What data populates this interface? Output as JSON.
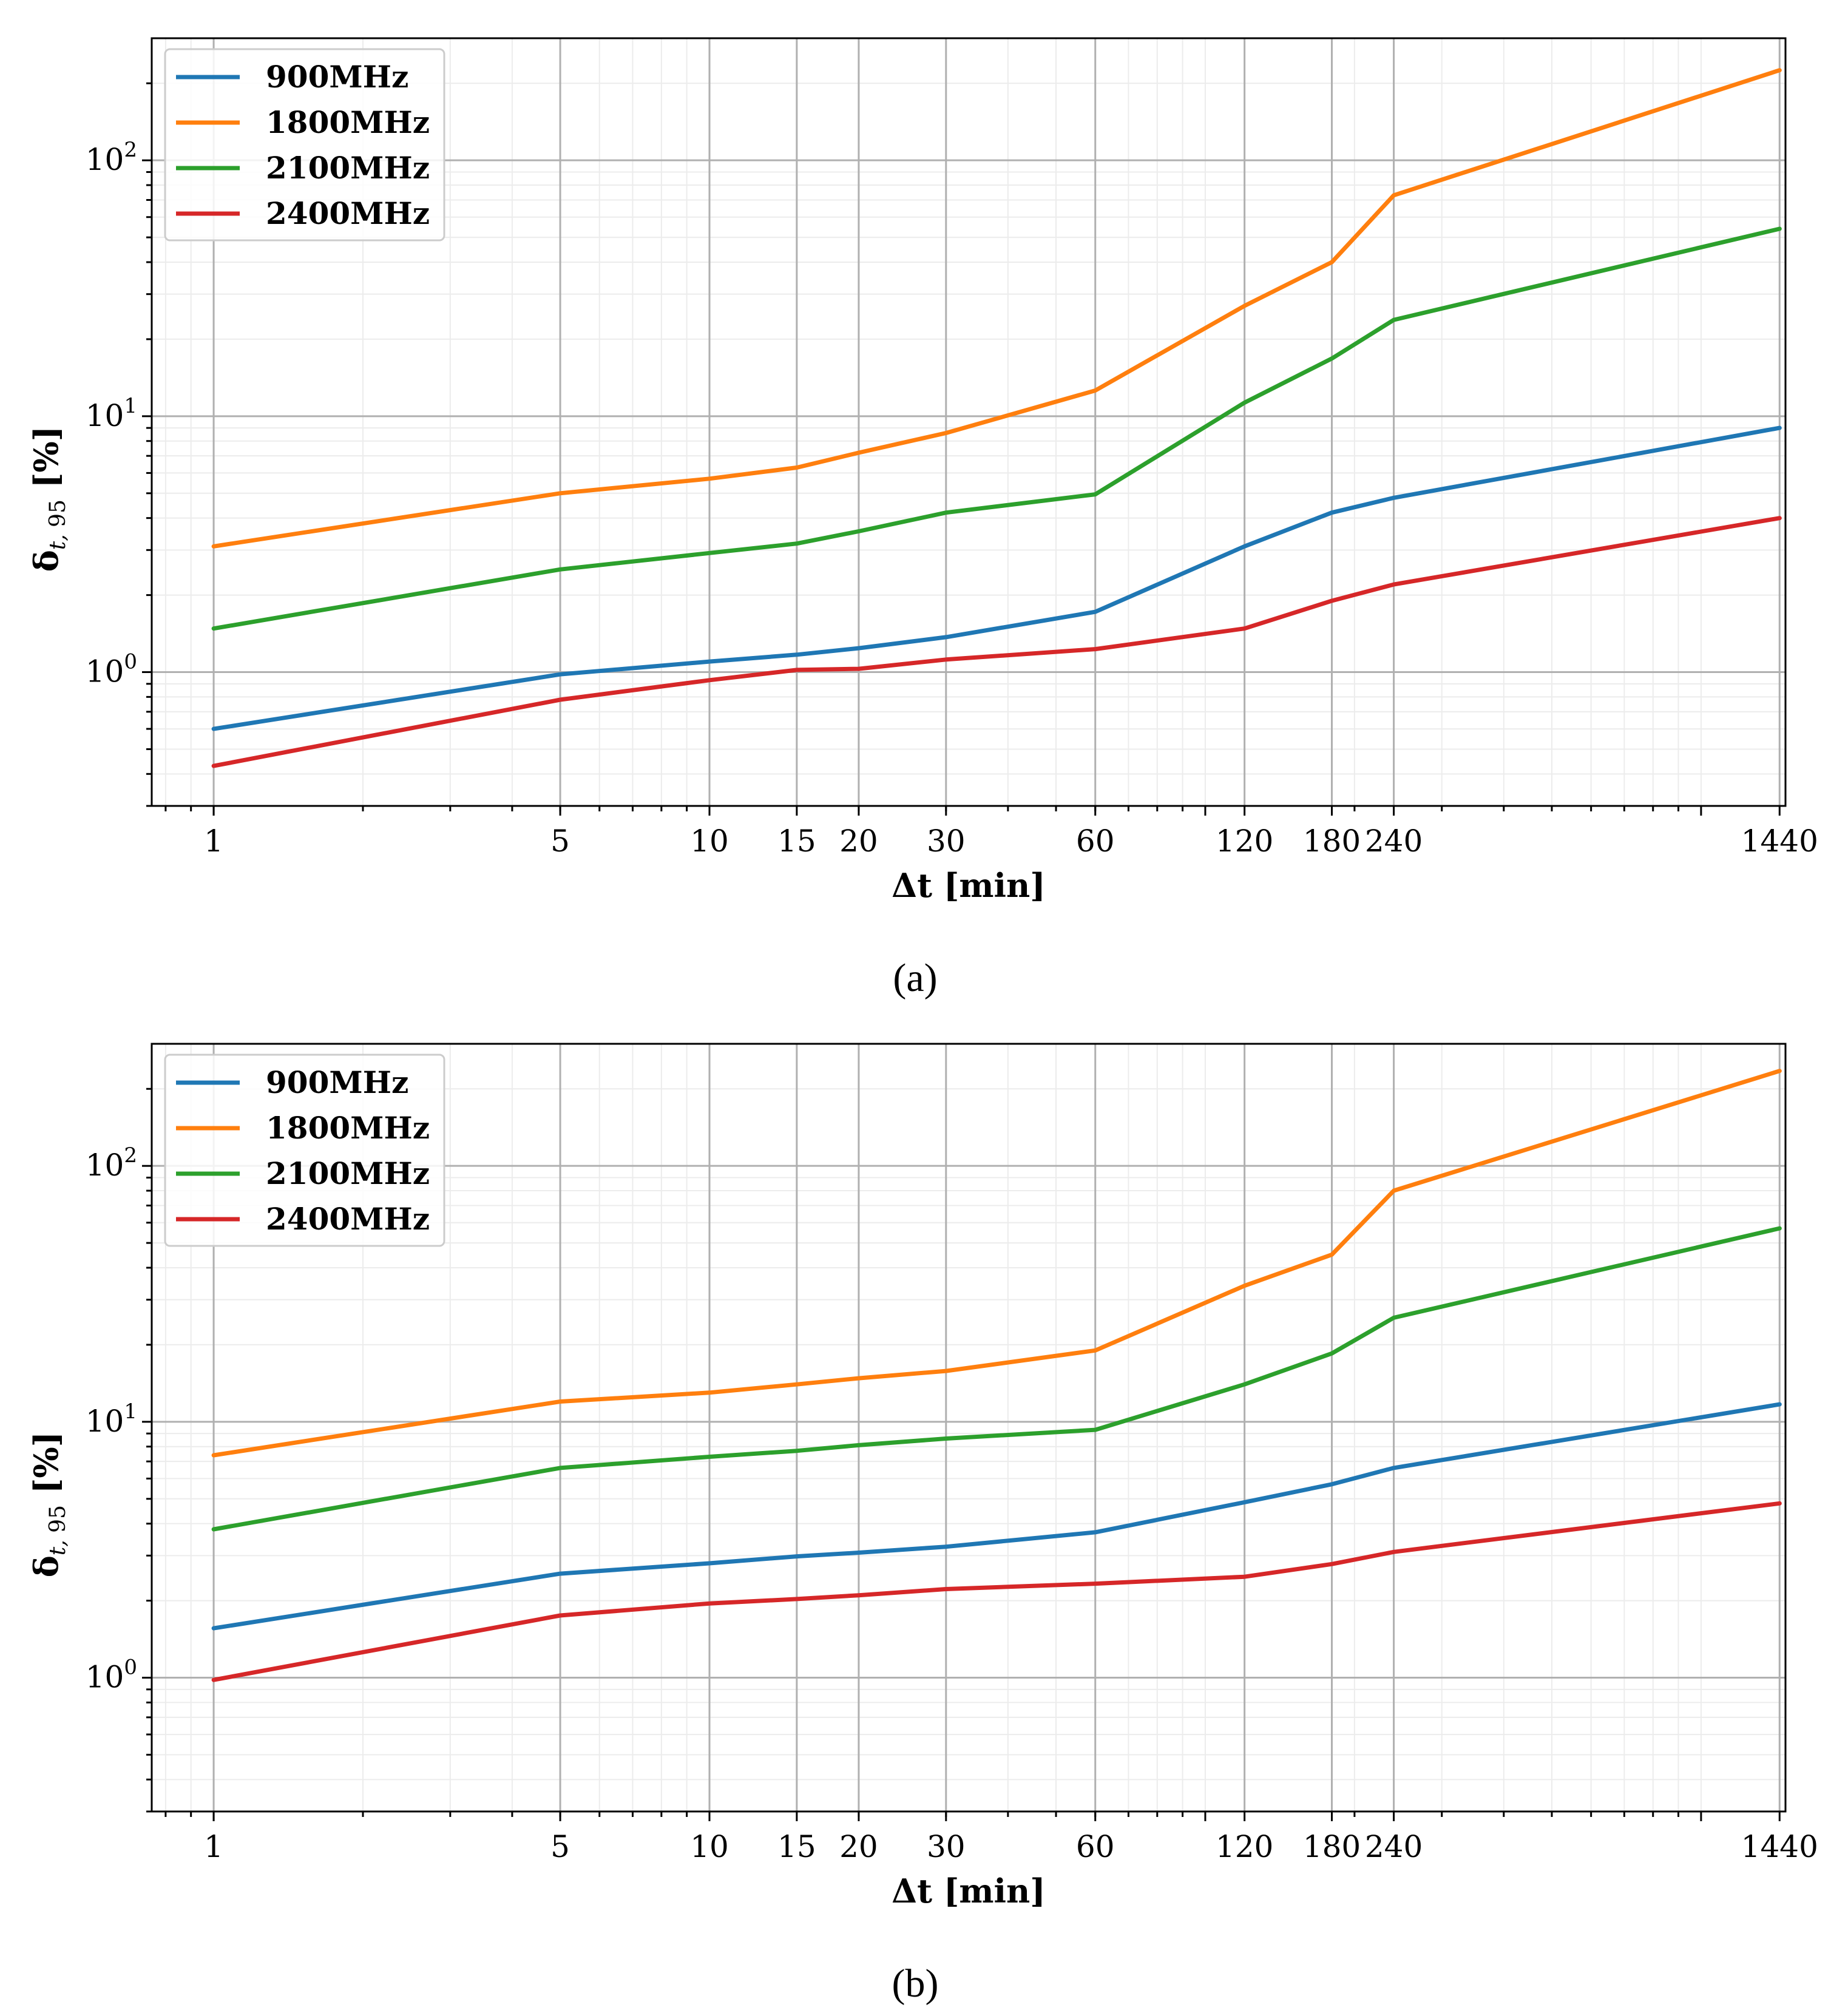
{
  "colors": {
    "900MHz": "#1f77b4",
    "1800MHz": "#ff7f0e",
    "2100MHz": "#2ca02c",
    "2400MHz": "#d62728"
  },
  "chart_data": [
    {
      "panel": "a",
      "caption": "(a)",
      "type": "line",
      "x_scale": "log",
      "y_scale": "log",
      "xlabel": "Δt [min]",
      "ylabel": "δt, 95 [%]",
      "x": [
        1,
        5,
        10,
        15,
        20,
        30,
        60,
        120,
        180,
        240,
        1440
      ],
      "x_tick_labels": [
        "1",
        "5",
        "10",
        "15",
        "20",
        "30",
        "60",
        "120",
        "180",
        "240",
        "1440"
      ],
      "xlim": [
        0.75,
        1480
      ],
      "ylim": [
        0.3,
        300
      ],
      "y_ticks": [
        1,
        10,
        100
      ],
      "grid": true,
      "legend_position": "top-left",
      "series": [
        {
          "name": "900MHz",
          "values": [
            0.6,
            0.98,
            1.1,
            1.17,
            1.24,
            1.37,
            1.72,
            3.1,
            4.2,
            4.8,
            9.0
          ]
        },
        {
          "name": "1800MHz",
          "values": [
            3.1,
            5.0,
            5.7,
            6.3,
            7.2,
            8.6,
            12.6,
            27.0,
            40.0,
            73.0,
            225.0
          ]
        },
        {
          "name": "2100MHz",
          "values": [
            1.48,
            2.52,
            2.92,
            3.18,
            3.55,
            4.2,
            4.95,
            11.3,
            16.8,
            23.8,
            54.0
          ]
        },
        {
          "name": "2400MHz",
          "values": [
            0.43,
            0.78,
            0.93,
            1.02,
            1.03,
            1.12,
            1.23,
            1.48,
            1.9,
            2.2,
            4.0
          ]
        }
      ]
    },
    {
      "panel": "b",
      "caption": "(b)",
      "type": "line",
      "x_scale": "log",
      "y_scale": "log",
      "xlabel": "Δt [min]",
      "ylabel": "δt, 95 [%]",
      "x": [
        1,
        5,
        10,
        15,
        20,
        30,
        60,
        120,
        180,
        240,
        1440
      ],
      "x_tick_labels": [
        "1",
        "5",
        "10",
        "15",
        "20",
        "30",
        "60",
        "120",
        "180",
        "240",
        "1440"
      ],
      "xlim": [
        0.75,
        1480
      ],
      "ylim": [
        0.3,
        300
      ],
      "y_ticks": [
        1,
        10,
        100
      ],
      "grid": true,
      "legend_position": "top-left",
      "series": [
        {
          "name": "900MHz",
          "values": [
            1.56,
            2.55,
            2.8,
            2.98,
            3.08,
            3.25,
            3.7,
            4.85,
            5.7,
            6.6,
            11.7
          ]
        },
        {
          "name": "1800MHz",
          "values": [
            7.4,
            12.0,
            13.0,
            14.0,
            14.8,
            15.8,
            19.0,
            34.0,
            45.0,
            80.0,
            235.0
          ]
        },
        {
          "name": "2100MHz",
          "values": [
            3.8,
            6.6,
            7.3,
            7.7,
            8.1,
            8.6,
            9.3,
            14.0,
            18.5,
            25.5,
            57.0
          ]
        },
        {
          "name": "2400MHz",
          "values": [
            0.98,
            1.75,
            1.95,
            2.03,
            2.1,
            2.22,
            2.33,
            2.48,
            2.78,
            3.1,
            4.8
          ]
        }
      ]
    }
  ]
}
